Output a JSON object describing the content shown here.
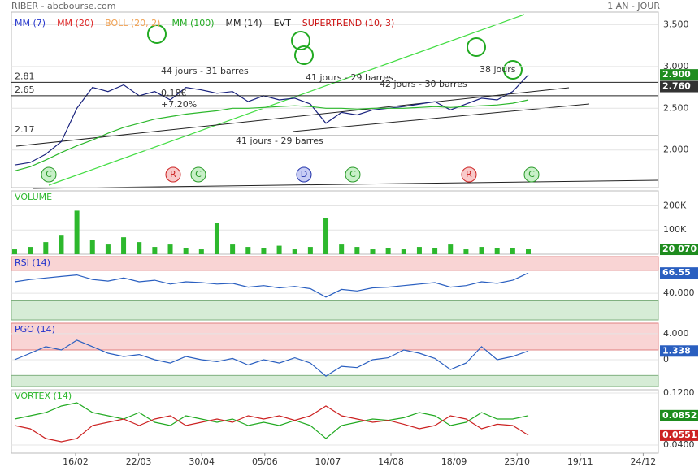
{
  "header": {
    "title": "RIBER - abcbourse.com",
    "period": "1 AN - JOUR"
  },
  "xticks": [
    "16/02",
    "22/03",
    "30/04",
    "05/06",
    "10/07",
    "14/08",
    "18/09",
    "23/10",
    "19/11",
    "24/12"
  ],
  "chart_data": [
    {
      "type": "line",
      "indicators": [
        {
          "name": "MM (7)",
          "color": "#2233cc"
        },
        {
          "name": "MM (20)",
          "color": "#dd2222"
        },
        {
          "name": "BOLL (20, 2)",
          "color": "#f0a050"
        },
        {
          "name": "MM (100)",
          "color": "#22aa22"
        },
        {
          "name": "MM (14)",
          "color": "#222222"
        },
        {
          "name": "EVT",
          "color": "#222222"
        },
        {
          "name": "SUPERTREND (10, 3)",
          "color": "#cc1111"
        }
      ],
      "series": [
        {
          "color": "#1a237e",
          "values": [
            1.82,
            1.85,
            1.95,
            2.1,
            2.5,
            2.75,
            2.7,
            2.78,
            2.65,
            2.7,
            2.6,
            2.75,
            2.72,
            2.68,
            2.7,
            2.58,
            2.65,
            2.6,
            2.62,
            2.55,
            2.32,
            2.45,
            2.42,
            2.48,
            2.5,
            2.52,
            2.55,
            2.58,
            2.48,
            2.55,
            2.62,
            2.6,
            2.7,
            2.9
          ]
        },
        {
          "color": "#2db82d",
          "values": [
            1.75,
            1.8,
            1.88,
            1.97,
            2.05,
            2.12,
            2.2,
            2.27,
            2.32,
            2.37,
            2.4,
            2.43,
            2.45,
            2.47,
            2.5,
            2.5,
            2.51,
            2.52,
            2.53,
            2.52,
            2.5,
            2.5,
            2.49,
            2.5,
            2.5,
            2.5,
            2.51,
            2.52,
            2.51,
            2.52,
            2.53,
            2.54,
            2.56,
            2.6
          ]
        }
      ],
      "levels": [
        2.81,
        2.65,
        2.17
      ],
      "annotations": [
        "44 jours - 31 barres",
        "41 jours - 29 barres",
        "42 jours - 30 barres",
        "38 jours",
        "41 jours - 29 barres",
        "0.18€",
        "+7.20%"
      ],
      "signals": [
        "C",
        "R",
        "C",
        "D",
        "C",
        "R",
        "C"
      ],
      "badges": [
        {
          "value": 2.9,
          "label": "2.900",
          "color": "#1e8c1e"
        },
        {
          "value": 2.76,
          "label": "2.760",
          "color": "#333333"
        }
      ],
      "ylim": [
        1.55,
        3.65
      ],
      "yticks": [
        {
          "value": 3.5,
          "label": "3.500"
        },
        {
          "value": 3,
          "label": "3.000"
        },
        {
          "value": 2.5,
          "label": "2.500"
        },
        {
          "value": 2,
          "label": "2.000"
        }
      ]
    },
    {
      "type": "bar",
      "title": "VOLUME",
      "title_color": "#2db82d",
      "color": "#2db82d",
      "values": [
        20000,
        30000,
        50000,
        80000,
        180000,
        60000,
        40000,
        70000,
        50000,
        30000,
        40000,
        25000,
        20000,
        130000,
        40000,
        30000,
        25000,
        35000,
        20000,
        30000,
        150000,
        40000,
        30000,
        20000,
        25000,
        20000,
        30000,
        25000,
        40000,
        20000,
        30000,
        25000,
        25000,
        20070
      ],
      "badges": [
        {
          "value": 20070,
          "label": "20 070",
          "color": "#1e8c1e"
        }
      ],
      "ylim": [
        0,
        262000
      ],
      "yticks": [
        {
          "value": 200000,
          "label": "200K"
        },
        {
          "value": 100000,
          "label": "100K"
        }
      ]
    },
    {
      "type": "line",
      "title": "RSI (14)",
      "title_color": "#2233cc",
      "series": [
        {
          "color": "#2a5fc0",
          "values": [
            55,
            58,
            60,
            62,
            64,
            58,
            56,
            60,
            55,
            57,
            52,
            55,
            54,
            52,
            53,
            48,
            50,
            47,
            49,
            46,
            35,
            45,
            43,
            47,
            48,
            50,
            52,
            54,
            48,
            50,
            55,
            53,
            57,
            66.55
          ]
        }
      ],
      "overbought": 70,
      "oversold": 30,
      "badges": [
        {
          "value": 66.55,
          "label": "66.55",
          "color": "#2a5fc0"
        }
      ],
      "ylim": [
        5,
        88
      ],
      "yticks": [
        {
          "value": 40,
          "label": "40.000"
        }
      ]
    },
    {
      "type": "line",
      "title": "PGO (14)",
      "title_color": "#2233cc",
      "series": [
        {
          "color": "#2a5fc0",
          "values": [
            0,
            1,
            2,
            1.5,
            3,
            2,
            1,
            0.5,
            0.8,
            0,
            -0.5,
            0.5,
            0,
            -0.3,
            0.2,
            -0.8,
            0,
            -0.5,
            0.3,
            -0.5,
            -2.5,
            -1,
            -1.2,
            0,
            0.3,
            1.5,
            1,
            0.2,
            -1.5,
            -0.5,
            2,
            0,
            0.5,
            1.338
          ]
        }
      ],
      "overbought": 1.5,
      "oversold": -2.4,
      "badges": [
        {
          "value": 1.338,
          "label": "1.338",
          "color": "#2a5fc0"
        }
      ],
      "ylim": [
        -4.1,
        5.6
      ],
      "yticks": [
        {
          "value": 4,
          "label": "4.000"
        },
        0
      ]
    },
    {
      "type": "line",
      "title": "VORTEX (14)",
      "title_color": "#2db82d",
      "series": [
        {
          "color": "#22aa22",
          "values": [
            0.08,
            0.085,
            0.09,
            0.1,
            0.105,
            0.09,
            0.085,
            0.08,
            0.09,
            0.075,
            0.07,
            0.085,
            0.08,
            0.075,
            0.08,
            0.07,
            0.075,
            0.07,
            0.078,
            0.07,
            0.05,
            0.07,
            0.075,
            0.08,
            0.078,
            0.082,
            0.09,
            0.085,
            0.07,
            0.075,
            0.09,
            0.08,
            0.08,
            0.0852
          ]
        },
        {
          "color": "#cc2222",
          "values": [
            0.07,
            0.065,
            0.05,
            0.045,
            0.05,
            0.07,
            0.075,
            0.08,
            0.07,
            0.08,
            0.085,
            0.07,
            0.075,
            0.08,
            0.075,
            0.085,
            0.08,
            0.085,
            0.078,
            0.085,
            0.1,
            0.085,
            0.08,
            0.075,
            0.078,
            0.072,
            0.065,
            0.07,
            0.085,
            0.08,
            0.065,
            0.072,
            0.07,
            0.0551
          ]
        }
      ],
      "badges": [
        {
          "value": 0.0852,
          "label": "0.0852",
          "color": "#1e8c1e"
        },
        {
          "value": 0.0551,
          "label": "0.0551",
          "color": "#cc2222"
        }
      ],
      "ylim": [
        0.0275,
        0.125
      ],
      "yticks": [
        {
          "value": 0.12,
          "label": "0.1200"
        },
        {
          "value": 0.04,
          "label": "0.0400"
        }
      ]
    }
  ]
}
